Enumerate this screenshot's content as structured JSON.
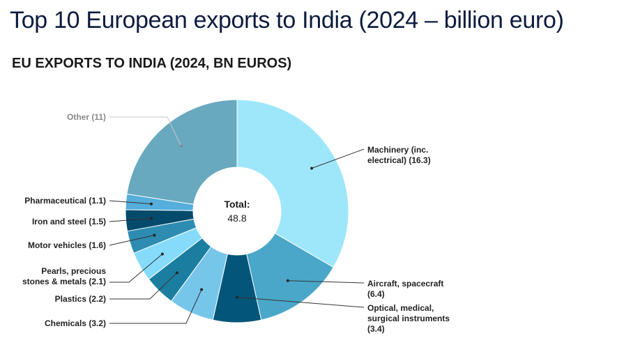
{
  "page": {
    "title": "Top 10 European exports to India (2024 – billion euro)"
  },
  "chart_data": {
    "type": "pie",
    "variant": "donut",
    "title": "EU EXPORTS TO INDIA (2024, BN EUROS)",
    "center_label": "Total:",
    "total": 48.8,
    "slices": [
      {
        "name": "Machinery (inc. electrical)",
        "value": 16.3,
        "label_lines": [
          "Machinery (inc.",
          "electrical) (16.3)"
        ],
        "color": "#9ee7fb"
      },
      {
        "name": "Aircraft, spacecraft",
        "value": 6.4,
        "label_lines": [
          "Aircraft, spacecraft",
          "(6.4)"
        ],
        "color": "#4aa7c9"
      },
      {
        "name": "Optical, medical, surgical instruments",
        "value": 3.4,
        "label_lines": [
          "Optical, medical,",
          "surgical instruments",
          "(3.4)"
        ],
        "color": "#03557a"
      },
      {
        "name": "Chemicals",
        "value": 3.2,
        "label_lines": [
          "Chemicals (3.2)"
        ],
        "color": "#76c6ea"
      },
      {
        "name": "Plastics",
        "value": 2.2,
        "label_lines": [
          "Plastics (2.2)"
        ],
        "color": "#1b7ea0"
      },
      {
        "name": "Pearls, precious stones & metals",
        "value": 2.1,
        "label_lines": [
          "Pearls, precious",
          "stones & metals (2.1)"
        ],
        "color": "#86dbfb"
      },
      {
        "name": "Motor vehicles",
        "value": 1.6,
        "label_lines": [
          "Motor vehicles (1.6)"
        ],
        "color": "#2e8cb2"
      },
      {
        "name": "Iron and steel",
        "value": 1.5,
        "label_lines": [
          "Iron and steel (1.5)"
        ],
        "color": "#034a6b"
      },
      {
        "name": "Pharmaceutical",
        "value": 1.1,
        "label_lines": [
          "Pharmaceutical (1.1)"
        ],
        "color": "#55aedb"
      },
      {
        "name": "Other",
        "value": 11,
        "label_lines": [
          "Other (11)"
        ],
        "color": "#69a9bf",
        "muted": true
      }
    ]
  }
}
